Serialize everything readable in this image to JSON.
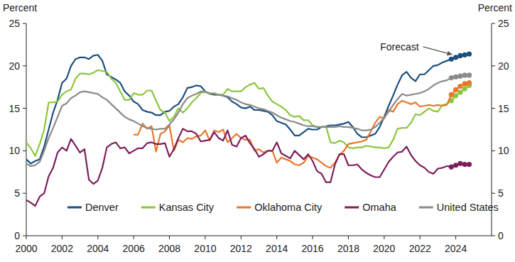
{
  "chart_data": {
    "type": "line",
    "y_label": "Percent",
    "y2_label": "Percent",
    "annotations": [
      {
        "text": "Forecast"
      }
    ],
    "legend": "bottom",
    "marker": "circle",
    "grid": false,
    "xlim": [
      2000,
      2026
    ],
    "xticks": [
      2000,
      2002,
      2004,
      2006,
      2008,
      2010,
      2012,
      2014,
      2016,
      2018,
      2020,
      2022,
      2024
    ],
    "ylim": [
      0,
      25
    ],
    "yticks": [
      0,
      5,
      10,
      15,
      20,
      25
    ],
    "x": [
      2000,
      2000.25,
      2000.5,
      2000.75,
      2001,
      2001.25,
      2001.5,
      2001.75,
      2002,
      2002.25,
      2002.5,
      2002.75,
      2003,
      2003.25,
      2003.5,
      2003.75,
      2004,
      2004.25,
      2004.5,
      2004.75,
      2005,
      2005.25,
      2005.5,
      2005.75,
      2006,
      2006.25,
      2006.5,
      2006.75,
      2007,
      2007.25,
      2007.5,
      2007.75,
      2008,
      2008.25,
      2008.5,
      2008.75,
      2009,
      2009.25,
      2009.5,
      2009.75,
      2010,
      2010.25,
      2010.5,
      2010.75,
      2011,
      2011.25,
      2011.5,
      2011.75,
      2012,
      2012.25,
      2012.5,
      2012.75,
      2013,
      2013.25,
      2013.5,
      2013.75,
      2014,
      2014.25,
      2014.5,
      2014.75,
      2015,
      2015.25,
      2015.5,
      2015.75,
      2016,
      2016.25,
      2016.5,
      2016.75,
      2017,
      2017.25,
      2017.5,
      2017.75,
      2018,
      2018.25,
      2018.5,
      2018.75,
      2019,
      2019.25,
      2019.5,
      2019.75,
      2020,
      2020.25,
      2020.5,
      2020.75,
      2021,
      2021.25,
      2021.5,
      2021.75,
      2022,
      2022.25,
      2022.5,
      2022.75,
      2023,
      2023.25,
      2023.5
    ],
    "forecast_x": [
      2023.75,
      2024,
      2024.25,
      2024.5,
      2024.75
    ],
    "series": [
      {
        "name": "Denver",
        "color": "#1b4f7c",
        "values": [
          9.0,
          8.5,
          8.8,
          9.0,
          10.5,
          12.5,
          14.5,
          16.0,
          18.0,
          18.5,
          20.0,
          20.8,
          21.0,
          21.0,
          20.8,
          21.2,
          21.3,
          20.6,
          19.0,
          18.7,
          18.4,
          18.0,
          17.0,
          16.5,
          15.8,
          15.5,
          14.8,
          14.6,
          14.5,
          14.2,
          14.2,
          14.6,
          14.7,
          15.2,
          15.5,
          16.3,
          17.4,
          17.5,
          17.7,
          17.6,
          17.0,
          16.7,
          16.6,
          16.6,
          16.5,
          16.3,
          15.8,
          15.5,
          15.1,
          15.0,
          15.2,
          14.8,
          14.8,
          14.7,
          14.6,
          14.2,
          13.5,
          13.3,
          13.1,
          12.5,
          11.8,
          11.8,
          12.2,
          12.6,
          12.5,
          12.5,
          12.8,
          12.9,
          13.0,
          13.0,
          13.1,
          13.2,
          13.4,
          12.8,
          12.0,
          11.6,
          11.6,
          11.8,
          12.0,
          12.8,
          14.0,
          15.3,
          16.5,
          17.8,
          18.9,
          19.3,
          18.6,
          18.2,
          19.0,
          19.0,
          19.5,
          20.0,
          20.1,
          20.4,
          20.6
        ],
        "forecast": [
          20.8,
          21.0,
          21.2,
          21.3,
          21.4
        ]
      },
      {
        "name": "Kansas City",
        "color": "#8cc63f",
        "values": [
          11.0,
          10.3,
          9.4,
          10.8,
          12.5,
          15.7,
          15.7,
          15.8,
          16.6,
          17.0,
          17.2,
          18.5,
          19.1,
          19.1,
          19.0,
          19.2,
          19.5,
          19.4,
          19.3,
          18.5,
          18.0,
          17.0,
          16.0,
          16.0,
          16.8,
          16.6,
          16.6,
          17.1,
          17.1,
          15.9,
          14.8,
          14.5,
          13.5,
          14.0,
          15.0,
          14.5,
          15.0,
          15.7,
          16.2,
          16.8,
          17.0,
          16.7,
          16.8,
          16.6,
          16.6,
          17.3,
          17.0,
          17.0,
          17.0,
          17.5,
          17.8,
          18.0,
          17.3,
          17.4,
          16.5,
          15.8,
          15.5,
          15.2,
          14.8,
          14.2,
          14.0,
          14.1,
          13.6,
          13.6,
          13.0,
          12.8,
          12.8,
          12.9,
          11.0,
          10.9,
          11.2,
          11.0,
          10.4,
          10.3,
          10.4,
          10.4,
          10.6,
          10.5,
          10.4,
          10.4,
          10.3,
          10.4,
          11.3,
          12.6,
          12.7,
          12.7,
          13.3,
          14.3,
          14.2,
          14.6,
          15.0,
          14.7,
          14.6,
          15.4,
          15.5
        ],
        "forecast": [
          15.9,
          16.5,
          16.9,
          17.3,
          17.7
        ]
      },
      {
        "name": "Oklahoma City",
        "color": "#e8762b",
        "values": [
          null,
          null,
          null,
          null,
          null,
          null,
          null,
          null,
          null,
          null,
          null,
          null,
          null,
          null,
          null,
          null,
          null,
          null,
          null,
          null,
          null,
          null,
          null,
          null,
          11.9,
          11.9,
          13.2,
          12.6,
          12.9,
          9.9,
          12.0,
          12.3,
          13.0,
          10.0,
          11.3,
          11.0,
          11.5,
          11.4,
          11.7,
          11.8,
          12.4,
          11.2,
          12.4,
          12.2,
          12.5,
          11.0,
          11.5,
          12.0,
          11.5,
          11.3,
          11.3,
          10.0,
          10.2,
          9.8,
          10.0,
          10.0,
          8.6,
          9.2,
          9.0,
          8.8,
          8.4,
          8.3,
          8.6,
          9.4,
          9.2,
          9.0,
          8.6,
          8.2,
          8.0,
          8.6,
          9.5,
          10.0,
          10.8,
          10.9,
          11.0,
          11.1,
          11.3,
          12.3,
          13.3,
          14.0,
          13.8,
          14.8,
          14.6,
          15.5,
          15.9,
          15.7,
          15.5,
          15.7,
          15.2,
          15.3,
          15.4,
          15.3,
          15.4,
          15.3,
          15.4
        ],
        "forecast": [
          16.6,
          17.2,
          17.6,
          17.9,
          18.0
        ]
      },
      {
        "name": "Omaha",
        "color": "#7b1f5c",
        "values": [
          4.2,
          3.9,
          3.5,
          4.6,
          5.0,
          7.0,
          8.0,
          9.8,
          10.4,
          10.0,
          11.4,
          10.6,
          9.8,
          10.2,
          6.6,
          6.1,
          6.5,
          8.0,
          10.4,
          10.8,
          11.0,
          10.3,
          10.4,
          9.7,
          10.0,
          10.3,
          10.3,
          10.9,
          11.0,
          10.8,
          10.8,
          10.9,
          9.3,
          10.2,
          11.5,
          12.6,
          12.3,
          12.3,
          12.0,
          11.1,
          11.2,
          11.3,
          12.2,
          11.5,
          11.2,
          12.4,
          10.7,
          10.5,
          11.5,
          11.8,
          10.9,
          10.2,
          9.3,
          9.6,
          10.0,
          10.0,
          11.0,
          9.7,
          9.4,
          9.1,
          10.0,
          9.5,
          9.0,
          9.6,
          8.8,
          7.6,
          7.3,
          6.3,
          6.3,
          8.4,
          9.6,
          9.6,
          8.3,
          8.3,
          8.4,
          7.8,
          7.4,
          7.1,
          6.9,
          6.9,
          7.8,
          8.7,
          9.3,
          9.8,
          9.9,
          10.5,
          9.5,
          8.8,
          8.3,
          8.0,
          7.5,
          7.3,
          7.9,
          8.0,
          8.2
        ],
        "forecast": [
          8.1,
          8.3,
          8.5,
          8.4,
          8.4
        ]
      },
      {
        "name": "United States",
        "color": "#8a8a8a",
        "values": [
          8.5,
          8.2,
          8.3,
          8.7,
          10.0,
          11.5,
          12.7,
          14.0,
          15.3,
          15.6,
          16.2,
          16.5,
          16.9,
          17.0,
          16.9,
          16.8,
          16.7,
          16.3,
          16.0,
          15.5,
          15.0,
          14.5,
          14.0,
          13.7,
          13.5,
          13.2,
          12.9,
          12.7,
          12.6,
          12.5,
          12.6,
          12.6,
          13.1,
          13.7,
          14.5,
          15.5,
          16.2,
          16.5,
          16.7,
          17.0,
          16.9,
          16.8,
          16.7,
          16.6,
          16.5,
          16.4,
          16.2,
          16.0,
          15.7,
          15.5,
          15.4,
          15.2,
          15.0,
          14.9,
          14.7,
          14.5,
          14.2,
          13.9,
          13.7,
          13.5,
          13.4,
          13.2,
          13.0,
          12.9,
          12.9,
          12.8,
          12.8,
          12.8,
          12.8,
          12.8,
          12.9,
          12.8,
          12.8,
          12.7,
          12.6,
          12.4,
          12.4,
          12.5,
          12.8,
          13.3,
          13.9,
          14.6,
          15.4,
          16.1,
          16.7,
          16.5,
          16.6,
          16.7,
          16.8,
          17.0,
          17.3,
          17.7,
          18.0,
          18.2,
          18.3
        ],
        "forecast": [
          18.6,
          18.7,
          18.8,
          18.9,
          18.9
        ]
      }
    ]
  }
}
